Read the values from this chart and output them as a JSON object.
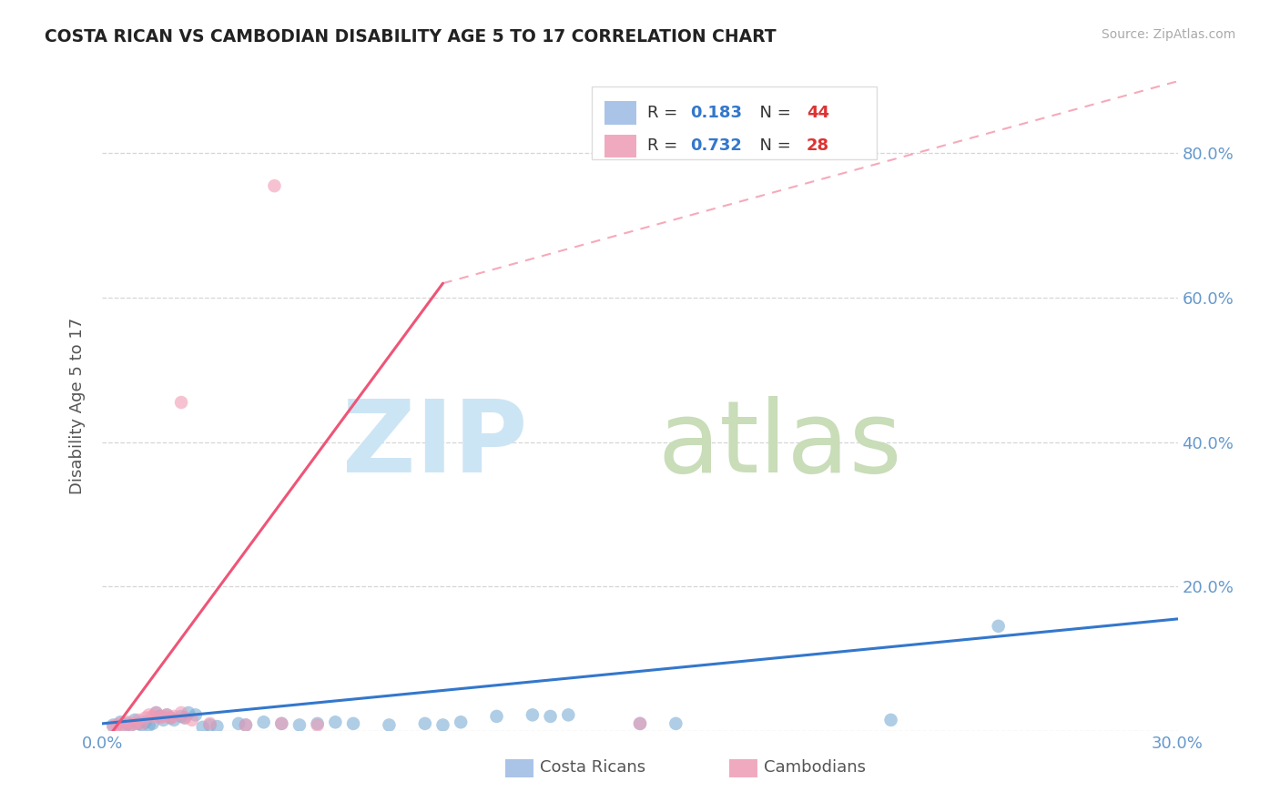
{
  "title": "COSTA RICAN VS CAMBODIAN DISABILITY AGE 5 TO 17 CORRELATION CHART",
  "source_text": "Source: ZipAtlas.com",
  "ylabel": "Disability Age 5 to 17",
  "xlim": [
    0.0,
    0.3
  ],
  "ylim": [
    0.0,
    0.9
  ],
  "xticks": [
    0.0,
    0.05,
    0.1,
    0.15,
    0.2,
    0.25,
    0.3
  ],
  "xticklabels": [
    "0.0%",
    "",
    "",
    "",
    "",
    "",
    "30.0%"
  ],
  "yticks": [
    0.0,
    0.2,
    0.4,
    0.6,
    0.8
  ],
  "yticklabels_right": [
    "",
    "20.0%",
    "40.0%",
    "60.0%",
    "80.0%"
  ],
  "grid_yticks": [
    0.0,
    0.2,
    0.4,
    0.6,
    0.8
  ],
  "legend_entries": [
    {
      "label": "Costa Ricans",
      "color": "#aac4e8",
      "R": "0.183",
      "N": "44"
    },
    {
      "label": "Cambodians",
      "color": "#f0aabf",
      "R": "0.732",
      "N": "28"
    }
  ],
  "blue_scatter": [
    [
      0.003,
      0.008
    ],
    [
      0.005,
      0.012
    ],
    [
      0.006,
      0.005
    ],
    [
      0.007,
      0.01
    ],
    [
      0.008,
      0.008
    ],
    [
      0.009,
      0.015
    ],
    [
      0.01,
      0.01
    ],
    [
      0.011,
      0.008
    ],
    [
      0.012,
      0.012
    ],
    [
      0.013,
      0.008
    ],
    [
      0.014,
      0.01
    ],
    [
      0.015,
      0.025
    ],
    [
      0.016,
      0.02
    ],
    [
      0.017,
      0.015
    ],
    [
      0.018,
      0.022
    ],
    [
      0.019,
      0.018
    ],
    [
      0.02,
      0.015
    ],
    [
      0.022,
      0.02
    ],
    [
      0.023,
      0.018
    ],
    [
      0.024,
      0.025
    ],
    [
      0.026,
      0.022
    ],
    [
      0.028,
      0.005
    ],
    [
      0.03,
      0.008
    ],
    [
      0.032,
      0.006
    ],
    [
      0.038,
      0.01
    ],
    [
      0.04,
      0.008
    ],
    [
      0.045,
      0.012
    ],
    [
      0.05,
      0.01
    ],
    [
      0.055,
      0.008
    ],
    [
      0.06,
      0.01
    ],
    [
      0.065,
      0.012
    ],
    [
      0.07,
      0.01
    ],
    [
      0.08,
      0.008
    ],
    [
      0.09,
      0.01
    ],
    [
      0.095,
      0.008
    ],
    [
      0.1,
      0.012
    ],
    [
      0.11,
      0.02
    ],
    [
      0.12,
      0.022
    ],
    [
      0.125,
      0.02
    ],
    [
      0.13,
      0.022
    ],
    [
      0.15,
      0.01
    ],
    [
      0.16,
      0.01
    ],
    [
      0.22,
      0.015
    ],
    [
      0.25,
      0.145
    ]
  ],
  "pink_scatter": [
    [
      0.003,
      0.006
    ],
    [
      0.004,
      0.008
    ],
    [
      0.005,
      0.01
    ],
    [
      0.006,
      0.006
    ],
    [
      0.007,
      0.012
    ],
    [
      0.008,
      0.008
    ],
    [
      0.009,
      0.01
    ],
    [
      0.01,
      0.015
    ],
    [
      0.011,
      0.01
    ],
    [
      0.012,
      0.018
    ],
    [
      0.013,
      0.022
    ],
    [
      0.014,
      0.02
    ],
    [
      0.015,
      0.025
    ],
    [
      0.016,
      0.018
    ],
    [
      0.017,
      0.02
    ],
    [
      0.018,
      0.022
    ],
    [
      0.019,
      0.018
    ],
    [
      0.02,
      0.02
    ],
    [
      0.022,
      0.025
    ],
    [
      0.023,
      0.018
    ],
    [
      0.025,
      0.015
    ],
    [
      0.03,
      0.01
    ],
    [
      0.04,
      0.008
    ],
    [
      0.05,
      0.01
    ],
    [
      0.06,
      0.008
    ],
    [
      0.048,
      0.755
    ],
    [
      0.022,
      0.455
    ],
    [
      0.15,
      0.01
    ]
  ],
  "blue_line": [
    [
      0.0,
      0.01
    ],
    [
      0.3,
      0.155
    ]
  ],
  "pink_line": [
    [
      0.0,
      -0.02
    ],
    [
      0.095,
      0.62
    ]
  ],
  "pink_line_dashed": [
    [
      0.095,
      0.62
    ],
    [
      0.3,
      0.9
    ]
  ],
  "blue_color": "#7aadd4",
  "pink_color": "#f09ab5",
  "blue_line_color": "#3377cc",
  "pink_line_color": "#ee5577",
  "background_color": "#ffffff",
  "grid_color": "#cccccc",
  "title_color": "#222222",
  "axis_label_color": "#555555",
  "tick_label_color": "#6699cc",
  "watermark_zip_color": "#cce5f5",
  "watermark_atlas_color": "#c8ddb8"
}
